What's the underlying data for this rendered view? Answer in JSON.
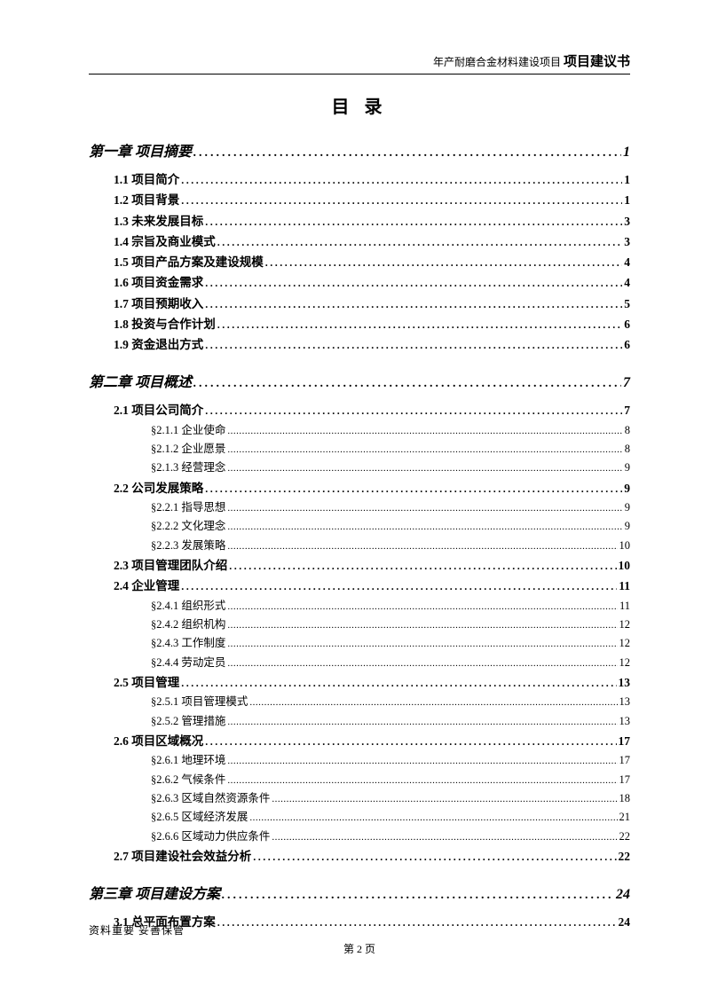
{
  "header": {
    "light": "年产耐磨合金材料建设项目",
    "bold": "项目建议书"
  },
  "title": "目 录",
  "toc": [
    {
      "type": "chapter",
      "label": "第一章 项目摘要",
      "page": "1"
    },
    {
      "type": "level1",
      "label": "1.1 项目简介",
      "page": "1"
    },
    {
      "type": "level1",
      "label": "1.2 项目背景",
      "page": "1"
    },
    {
      "type": "level1",
      "label": "1.3 未来发展目标",
      "page": "3"
    },
    {
      "type": "level1",
      "label": "1.4 宗旨及商业模式",
      "page": "3"
    },
    {
      "type": "level1",
      "label": "1.5 项目产品方案及建设规模",
      "page": "4"
    },
    {
      "type": "level1",
      "label": "1.6 项目资金需求",
      "page": "4"
    },
    {
      "type": "level1",
      "label": "1.7 项目预期收入",
      "page": "5"
    },
    {
      "type": "level1",
      "label": "1.8 投资与合作计划",
      "page": "6"
    },
    {
      "type": "level1",
      "label": "1.9 资金退出方式",
      "page": "6"
    },
    {
      "type": "chapter",
      "label": "第二章 项目概述",
      "page": "7"
    },
    {
      "type": "level1",
      "label": "2.1 项目公司简介",
      "page": "7"
    },
    {
      "type": "level2",
      "label": "§2.1.1 企业使命",
      "page": "8"
    },
    {
      "type": "level2",
      "label": "§2.1.2 企业愿景",
      "page": "8"
    },
    {
      "type": "level2",
      "label": "§2.1.3 经营理念",
      "page": "9"
    },
    {
      "type": "level1",
      "label": "2.2 公司发展策略",
      "page": "9"
    },
    {
      "type": "level2",
      "label": "§2.2.1 指导思想",
      "page": "9"
    },
    {
      "type": "level2",
      "label": "§2.2.2 文化理念",
      "page": "9"
    },
    {
      "type": "level2",
      "label": "§2.2.3 发展策略",
      "page": "10"
    },
    {
      "type": "level1",
      "label": "2.3 项目管理团队介绍",
      "page": "10"
    },
    {
      "type": "level1",
      "label": "2.4 企业管理",
      "page": "11"
    },
    {
      "type": "level2",
      "label": "§2.4.1 组织形式",
      "page": "11"
    },
    {
      "type": "level2",
      "label": "§2.4.2 组织机构",
      "page": "12"
    },
    {
      "type": "level2",
      "label": "§2.4.3 工作制度",
      "page": "12"
    },
    {
      "type": "level2",
      "label": "§2.4.4 劳动定员",
      "page": "12"
    },
    {
      "type": "level1",
      "label": "2.5 项目管理",
      "page": "13"
    },
    {
      "type": "level2",
      "label": "§2.5.1 项目管理模式",
      "page": "13"
    },
    {
      "type": "level2",
      "label": "§2.5.2 管理措施",
      "page": "13"
    },
    {
      "type": "level1",
      "label": "2.6 项目区域概况",
      "page": "17"
    },
    {
      "type": "level2",
      "label": "§2.6.1 地理环境",
      "page": "17"
    },
    {
      "type": "level2",
      "label": "§2.6.2 气候条件",
      "page": "17"
    },
    {
      "type": "level2",
      "label": "§2.6.3 区域自然资源条件",
      "page": "18"
    },
    {
      "type": "level2",
      "label": "§2.6.5 区域经济发展",
      "page": "21"
    },
    {
      "type": "level2",
      "label": "§2.6.6 区域动力供应条件",
      "page": "22"
    },
    {
      "type": "level1",
      "label": "2.7 项目建设社会效益分析",
      "page": "22"
    },
    {
      "type": "chapter",
      "label": "第三章 项目建设方案",
      "page": "24"
    },
    {
      "type": "level1",
      "label": "3.1 总平面布置方案",
      "page": "24"
    }
  ],
  "footer": {
    "note": "资料重要  妥善保管",
    "page": "第 2 页"
  }
}
